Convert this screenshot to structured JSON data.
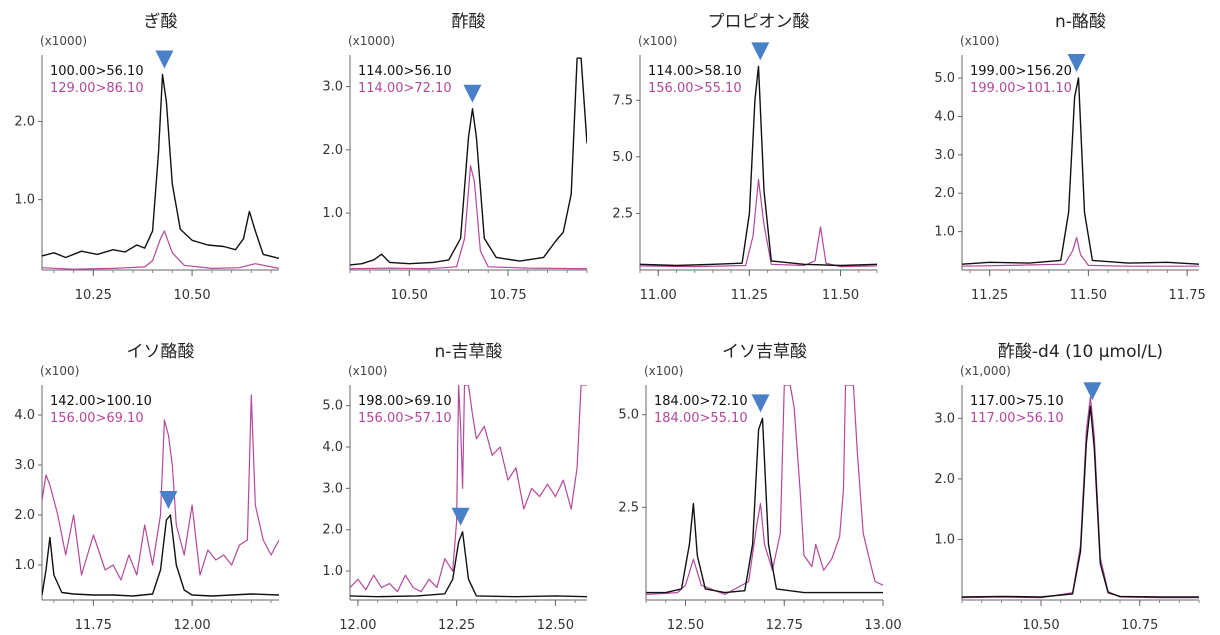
{
  "series_colors": {
    "quant": "#111111",
    "qual": "#b5479d"
  },
  "marker_color": "#4a80c8",
  "chart_data": [
    {
      "type": "line",
      "title": "ぎ酸",
      "multiplier": "(x1000)",
      "xlim": [
        10.12,
        10.72
      ],
      "ylim": [
        0.1,
        2.85
      ],
      "yticks": [
        1.0,
        2.0
      ],
      "xticks": [
        10.25,
        10.5
      ],
      "peak_rt": 10.43,
      "series": [
        {
          "name": "100.00>56.10",
          "x": [
            10.12,
            10.15,
            10.18,
            10.22,
            10.26,
            10.3,
            10.33,
            10.36,
            10.38,
            10.4,
            10.415,
            10.425,
            10.435,
            10.45,
            10.47,
            10.5,
            10.54,
            10.58,
            10.61,
            10.63,
            10.645,
            10.66,
            10.68,
            10.72
          ],
          "values": [
            0.28,
            0.32,
            0.26,
            0.34,
            0.3,
            0.36,
            0.33,
            0.42,
            0.38,
            0.6,
            1.6,
            2.6,
            2.25,
            1.2,
            0.62,
            0.48,
            0.42,
            0.4,
            0.36,
            0.5,
            0.85,
            0.6,
            0.3,
            0.25
          ]
        },
        {
          "name": "129.00>86.10",
          "x": [
            10.12,
            10.2,
            10.3,
            10.38,
            10.4,
            10.42,
            10.43,
            10.45,
            10.48,
            10.55,
            10.62,
            10.66,
            10.72
          ],
          "values": [
            0.13,
            0.11,
            0.12,
            0.14,
            0.22,
            0.5,
            0.6,
            0.32,
            0.16,
            0.12,
            0.13,
            0.18,
            0.12
          ]
        }
      ]
    },
    {
      "type": "line",
      "title": "酢酸",
      "multiplier": "(x1000)",
      "xlim": [
        10.35,
        10.95
      ],
      "ylim": [
        0.1,
        3.5
      ],
      "yticks": [
        1.0,
        2.0,
        3.0
      ],
      "xticks": [
        10.5,
        10.75
      ],
      "peak_rt": 10.66,
      "series": [
        {
          "name": "114.00>56.10",
          "x": [
            10.35,
            10.38,
            10.41,
            10.43,
            10.45,
            10.5,
            10.56,
            10.6,
            10.63,
            10.65,
            10.66,
            10.67,
            10.69,
            10.72,
            10.78,
            10.84,
            10.87,
            10.89,
            10.91,
            10.925,
            10.935,
            10.95
          ],
          "values": [
            0.18,
            0.2,
            0.26,
            0.35,
            0.22,
            0.2,
            0.22,
            0.26,
            0.6,
            2.2,
            2.65,
            2.2,
            0.6,
            0.3,
            0.24,
            0.3,
            0.55,
            0.7,
            1.3,
            3.45,
            3.45,
            2.1
          ]
        },
        {
          "name": "114.00>72.10",
          "x": [
            10.35,
            10.45,
            10.55,
            10.62,
            10.64,
            10.655,
            10.665,
            10.68,
            10.7,
            10.8,
            10.95
          ],
          "values": [
            0.12,
            0.13,
            0.12,
            0.15,
            0.6,
            1.75,
            1.5,
            0.4,
            0.15,
            0.13,
            0.12
          ]
        }
      ]
    },
    {
      "type": "line",
      "title": "プロピオン酸",
      "multiplier": "(x100)",
      "xlim": [
        10.95,
        11.6
      ],
      "ylim": [
        0.0,
        9.5
      ],
      "yticks": [
        2.5,
        5.0,
        7.5
      ],
      "xticks": [
        11.0,
        11.25,
        11.5
      ],
      "peak_rt": 11.28,
      "series": [
        {
          "name": "114.00>58.10",
          "x": [
            10.95,
            11.05,
            11.15,
            11.23,
            11.25,
            11.265,
            11.275,
            11.29,
            11.31,
            11.4,
            11.5,
            11.6
          ],
          "values": [
            0.25,
            0.2,
            0.25,
            0.3,
            2.5,
            7.5,
            9.0,
            3.5,
            0.4,
            0.25,
            0.2,
            0.25
          ]
        },
        {
          "name": "156.00>55.10",
          "x": [
            10.95,
            11.1,
            11.24,
            11.26,
            11.275,
            11.29,
            11.31,
            11.4,
            11.43,
            11.445,
            11.46,
            11.5,
            11.6
          ],
          "values": [
            0.18,
            0.15,
            0.2,
            1.5,
            4.0,
            2.0,
            0.25,
            0.2,
            0.4,
            1.9,
            0.3,
            0.15,
            0.18
          ]
        }
      ]
    },
    {
      "type": "line",
      "title": "n-酪酸",
      "multiplier": "(x100)",
      "xlim": [
        11.18,
        11.78
      ],
      "ylim": [
        0.0,
        5.6
      ],
      "yticks": [
        1.0,
        2.0,
        3.0,
        4.0,
        5.0
      ],
      "xticks": [
        11.25,
        11.5,
        11.75
      ],
      "peak_rt": 11.47,
      "series": [
        {
          "name": "199.00>156.20",
          "x": [
            11.18,
            11.25,
            11.35,
            11.43,
            11.45,
            11.465,
            11.475,
            11.49,
            11.51,
            11.6,
            11.7,
            11.78
          ],
          "values": [
            0.15,
            0.2,
            0.18,
            0.25,
            1.5,
            4.5,
            5.0,
            1.5,
            0.25,
            0.18,
            0.2,
            0.15
          ]
        },
        {
          "name": "199.00>101.10",
          "x": [
            11.18,
            11.3,
            11.44,
            11.46,
            11.47,
            11.48,
            11.5,
            11.6,
            11.78
          ],
          "values": [
            0.1,
            0.12,
            0.15,
            0.5,
            0.85,
            0.4,
            0.12,
            0.1,
            0.1
          ]
        }
      ]
    },
    {
      "type": "line",
      "title": "イソ酪酸",
      "multiplier": "(x100)",
      "xlim": [
        11.62,
        12.22
      ],
      "ylim": [
        0.3,
        4.6
      ],
      "yticks": [
        1.0,
        2.0,
        3.0,
        4.0
      ],
      "xticks": [
        11.75,
        12.0
      ],
      "peak_rt": 11.94,
      "series": [
        {
          "name": "142.00>100.10",
          "x": [
            11.62,
            11.63,
            11.64,
            11.65,
            11.67,
            11.7,
            11.75,
            11.8,
            11.85,
            11.9,
            11.92,
            11.935,
            11.945,
            11.96,
            11.98,
            12.0,
            12.05,
            12.1,
            12.15,
            12.22
          ],
          "values": [
            0.4,
            0.9,
            1.55,
            0.8,
            0.45,
            0.42,
            0.4,
            0.4,
            0.38,
            0.42,
            0.9,
            1.9,
            2.0,
            1.0,
            0.5,
            0.4,
            0.38,
            0.4,
            0.42,
            0.4
          ]
        },
        {
          "name": "156.00>69.10",
          "x": [
            11.62,
            11.63,
            11.64,
            11.66,
            11.68,
            11.7,
            11.72,
            11.75,
            11.78,
            11.8,
            11.82,
            11.84,
            11.86,
            11.88,
            11.9,
            11.92,
            11.93,
            11.94,
            11.95,
            11.96,
            11.98,
            12.0,
            12.02,
            12.04,
            12.06,
            12.08,
            12.1,
            12.12,
            12.14,
            12.15,
            12.16,
            12.18,
            12.2,
            12.22
          ],
          "values": [
            2.3,
            2.8,
            2.6,
            2.0,
            1.2,
            2.0,
            0.8,
            1.6,
            0.9,
            1.0,
            0.7,
            1.2,
            0.8,
            1.8,
            1.0,
            2.0,
            3.9,
            3.6,
            3.0,
            1.8,
            1.2,
            2.2,
            0.8,
            1.3,
            1.1,
            1.2,
            1.0,
            1.4,
            1.5,
            4.4,
            2.2,
            1.5,
            1.2,
            1.5
          ]
        }
      ]
    },
    {
      "type": "line",
      "title": "n-吉草酸",
      "multiplier": "(x100)",
      "xlim": [
        11.98,
        12.58
      ],
      "ylim": [
        0.3,
        5.5
      ],
      "yticks": [
        1.0,
        2.0,
        3.0,
        4.0,
        5.0
      ],
      "xticks": [
        12.0,
        12.25,
        12.5
      ],
      "peak_rt": 12.26,
      "series": [
        {
          "name": "198.00>69.10",
          "x": [
            11.98,
            12.05,
            12.15,
            12.22,
            12.24,
            12.255,
            12.265,
            12.28,
            12.3,
            12.4,
            12.5,
            12.58
          ],
          "values": [
            0.4,
            0.38,
            0.4,
            0.45,
            0.8,
            1.7,
            1.95,
            0.8,
            0.4,
            0.38,
            0.4,
            0.38
          ]
        },
        {
          "name": "156.00>57.10",
          "x": [
            11.98,
            12.0,
            12.02,
            12.04,
            12.06,
            12.08,
            12.1,
            12.12,
            12.14,
            12.16,
            12.18,
            12.2,
            12.22,
            12.24,
            12.25,
            12.255,
            12.26,
            12.265,
            12.27,
            12.275,
            12.28,
            12.29,
            12.3,
            12.32,
            12.34,
            12.36,
            12.38,
            12.4,
            12.42,
            12.44,
            12.46,
            12.48,
            12.5,
            12.52,
            12.54,
            12.555,
            12.565,
            12.575,
            12.58
          ],
          "values": [
            0.6,
            0.8,
            0.55,
            0.9,
            0.6,
            0.7,
            0.5,
            0.9,
            0.6,
            0.5,
            0.8,
            0.6,
            1.3,
            1.0,
            2.2,
            5.5,
            4.5,
            3.0,
            5.5,
            5.5,
            5.5,
            4.8,
            4.2,
            4.5,
            3.8,
            4.0,
            3.2,
            3.5,
            2.5,
            3.0,
            2.8,
            3.1,
            2.8,
            3.2,
            2.5,
            3.5,
            5.5,
            5.5,
            5.5
          ]
        }
      ]
    },
    {
      "type": "line",
      "title": "イソ吉草酸",
      "multiplier": "(x100)",
      "xlim": [
        12.4,
        13.0
      ],
      "ylim": [
        0.0,
        5.8
      ],
      "yticks": [
        2.5,
        5.0
      ],
      "xticks": [
        12.5,
        12.75,
        13.0
      ],
      "peak_rt": 12.69,
      "series": [
        {
          "name": "184.00>72.10",
          "x": [
            12.4,
            12.45,
            12.49,
            12.51,
            12.52,
            12.53,
            12.55,
            12.6,
            12.65,
            12.67,
            12.685,
            12.695,
            12.71,
            12.73,
            12.8,
            12.9,
            13.0
          ],
          "values": [
            0.2,
            0.2,
            0.3,
            1.5,
            2.6,
            1.2,
            0.3,
            0.2,
            0.25,
            1.5,
            4.6,
            4.9,
            1.5,
            0.3,
            0.2,
            0.2,
            0.2
          ]
        },
        {
          "name": "184.00>55.10",
          "x": [
            12.4,
            12.48,
            12.5,
            12.52,
            12.54,
            12.6,
            12.66,
            12.68,
            12.69,
            12.7,
            12.72,
            12.74,
            12.75,
            12.755,
            12.765,
            12.775,
            12.79,
            12.8,
            12.82,
            12.83,
            12.85,
            12.87,
            12.89,
            12.9,
            12.905,
            12.915,
            12.925,
            12.935,
            12.95,
            12.97,
            12.98,
            13.0
          ],
          "values": [
            0.15,
            0.2,
            0.4,
            1.1,
            0.4,
            0.15,
            0.5,
            2.0,
            2.6,
            1.5,
            0.8,
            1.8,
            5.8,
            5.8,
            5.8,
            5.2,
            3.0,
            1.2,
            0.9,
            1.5,
            0.8,
            1.1,
            1.7,
            3.0,
            5.8,
            5.8,
            5.8,
            4.0,
            1.8,
            0.9,
            0.5,
            0.4
          ]
        }
      ]
    },
    {
      "type": "line",
      "title": "酢酸-d4 (10 μmol/L)",
      "multiplier": "(x1,000)",
      "xlim": [
        10.3,
        10.9
      ],
      "ylim": [
        0.0,
        3.55
      ],
      "yticks": [
        1.0,
        2.0,
        3.0
      ],
      "xticks": [
        10.5,
        10.75
      ],
      "peak_rt": 10.63,
      "series": [
        {
          "name": "117.00>75.10",
          "x": [
            10.3,
            10.4,
            10.5,
            10.58,
            10.6,
            10.615,
            10.625,
            10.635,
            10.65,
            10.67,
            10.7,
            10.8,
            10.9
          ],
          "values": [
            0.05,
            0.06,
            0.05,
            0.1,
            0.8,
            2.6,
            3.2,
            2.5,
            0.6,
            0.12,
            0.06,
            0.05,
            0.05
          ]
        },
        {
          "name": "117.00>56.10",
          "x": [
            10.3,
            10.4,
            10.5,
            10.58,
            10.6,
            10.615,
            10.625,
            10.635,
            10.65,
            10.67,
            10.7,
            10.8,
            10.9
          ],
          "values": [
            0.04,
            0.05,
            0.04,
            0.12,
            0.9,
            2.8,
            3.35,
            2.7,
            0.7,
            0.14,
            0.05,
            0.04,
            0.04
          ]
        }
      ]
    }
  ]
}
